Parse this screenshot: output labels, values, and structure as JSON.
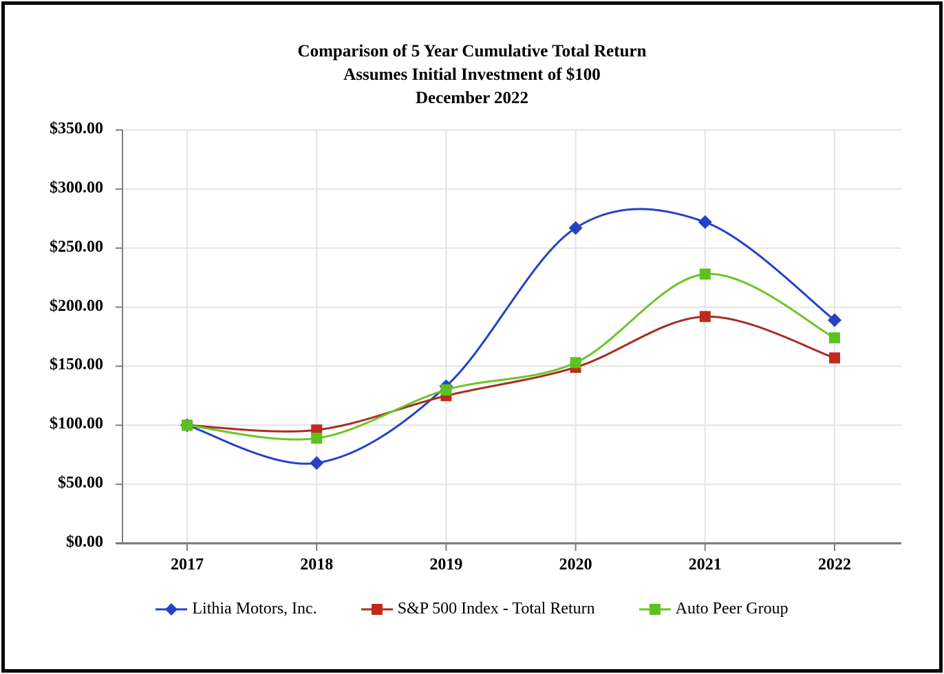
{
  "page": {
    "background_color": "#ffffff",
    "frame_border_color": "#000000"
  },
  "chart_data": {
    "type": "line",
    "smoothed": true,
    "title_lines": [
      "Comparison of 5 Year Cumulative Total Return",
      "Assumes Initial Investment of $100",
      "December 2022"
    ],
    "categories": [
      "2017",
      "2018",
      "2019",
      "2020",
      "2021",
      "2022"
    ],
    "series": [
      {
        "name": "Lithia Motors, Inc.",
        "marker": "diamond",
        "color": "#2342C8",
        "marker_color": "#2342C8",
        "values": [
          100.0,
          68.0,
          133.0,
          267.0,
          272.0,
          189.0
        ]
      },
      {
        "name": "S&P 500 Index - Total Return",
        "marker": "square",
        "color": "#A82C22",
        "marker_color": "#C02A1C",
        "values": [
          100.0,
          96.0,
          125.0,
          149.0,
          192.0,
          157.0
        ]
      },
      {
        "name": "Auto Peer Group",
        "marker": "square",
        "color": "#6CC527",
        "marker_color": "#5BC21E",
        "values": [
          100.0,
          89.0,
          130.0,
          153.0,
          228.0,
          174.0
        ]
      }
    ],
    "y_axis": {
      "min": 0,
      "max": 350,
      "step": 50,
      "tick_labels": [
        "$0.00",
        "$50.00",
        "$100.00",
        "$150.00",
        "$200.00",
        "$250.00",
        "$300.00",
        "$350.00"
      ]
    },
    "x_axis": {
      "tick_labels": [
        "2017",
        "2018",
        "2019",
        "2020",
        "2021",
        "2022"
      ]
    },
    "grid": true,
    "legend_position": "bottom",
    "colors": {
      "gridline": "#e4e4e4",
      "axis_line": "#7f7f7f",
      "x_axis_line": "#757575",
      "text": "#000000"
    }
  }
}
